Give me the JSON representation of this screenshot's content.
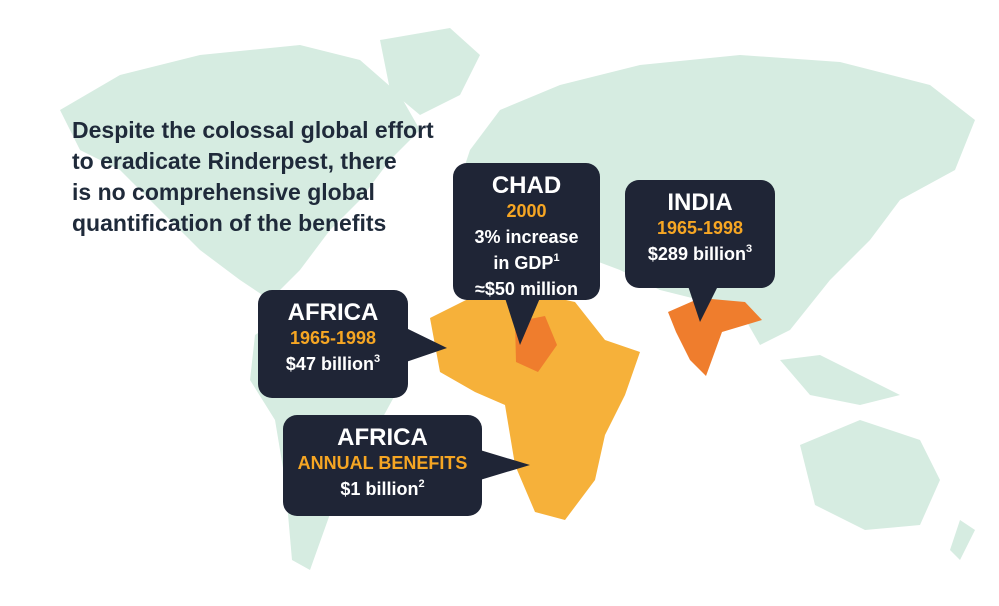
{
  "headline": [
    "Despite the colossal global effort",
    "to eradicate Rinderpest, there",
    "is no comprehensive global",
    "quantification of the benefits"
  ],
  "callouts": [
    {
      "region": "CHAD",
      "period": "2000",
      "lines": [
        {
          "text": "3% increase"
        },
        {
          "text": "in GDP",
          "note": "1"
        },
        {
          "text": "≈$50 million"
        }
      ]
    },
    {
      "region": "INDIA",
      "period": "1965-1998",
      "lines": [
        {
          "text": "$289 billion",
          "note": "3"
        }
      ]
    },
    {
      "region": "AFRICA",
      "period": "1965-1998",
      "lines": [
        {
          "text": "$47 billion",
          "note": "3"
        }
      ]
    },
    {
      "region": "AFRICA",
      "period": "ANNUAL BENEFITS",
      "lines": [
        {
          "text": "$1 billion",
          "note": "2"
        }
      ]
    }
  ]
}
